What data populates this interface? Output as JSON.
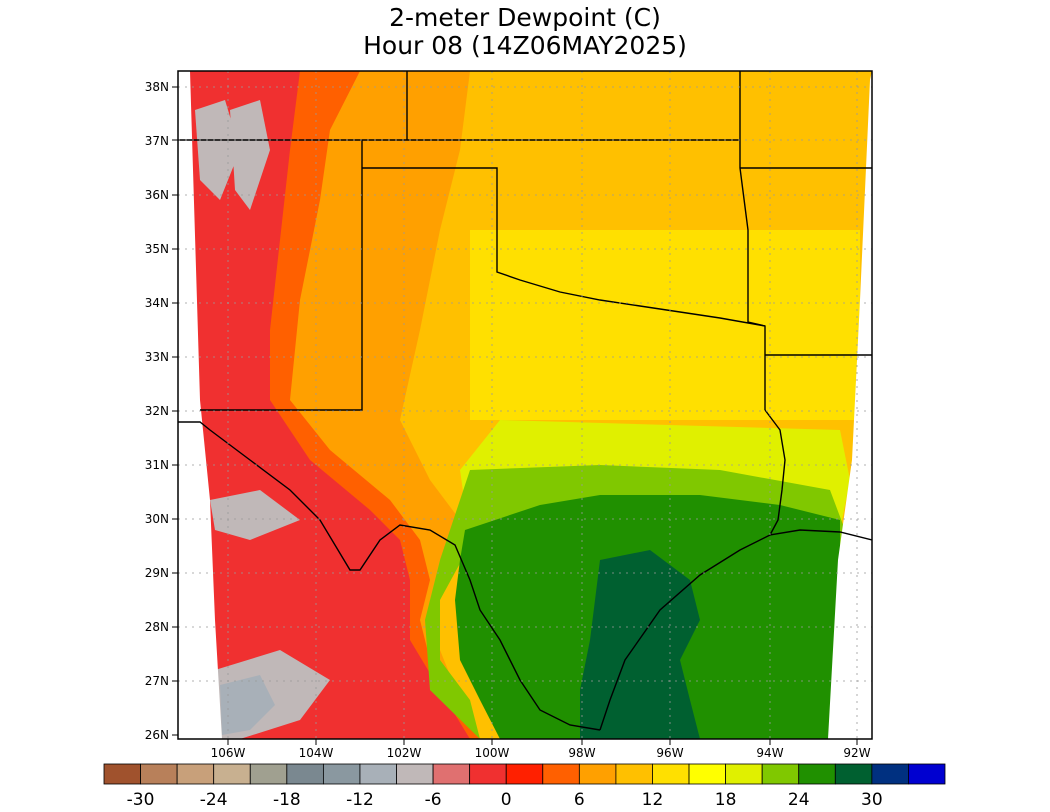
{
  "title": "2-meter Dewpoint (C)",
  "subtitle": "Hour 08 (14Z06MAY2025)",
  "map": {
    "lat_labels": [
      "38N",
      "37N",
      "36N",
      "35N",
      "34N",
      "33N",
      "32N",
      "31N",
      "30N",
      "29N",
      "28N",
      "27N",
      "26N"
    ],
    "lon_labels": [
      "106W",
      "104W",
      "102W",
      "100W",
      "98W",
      "96W",
      "94W",
      "92W"
    ]
  },
  "colorbar": {
    "colors": [
      "#a0522d",
      "#b8805a",
      "#c8a07a",
      "#c8b090",
      "#a0a090",
      "#7a8890",
      "#8a98a0",
      "#a8b0b8",
      "#c0b8b8",
      "#e07070",
      "#f03030",
      "#ff2000",
      "#ff6000",
      "#ffa000",
      "#ffc000",
      "#ffe000",
      "#ffff00",
      "#e0f000",
      "#80c800",
      "#209000",
      "#006030",
      "#003080",
      "#0000d0"
    ],
    "labels": [
      "-30",
      "-24",
      "-18",
      "-12",
      "-6",
      "0",
      "6",
      "12",
      "18",
      "24",
      "30"
    ]
  }
}
